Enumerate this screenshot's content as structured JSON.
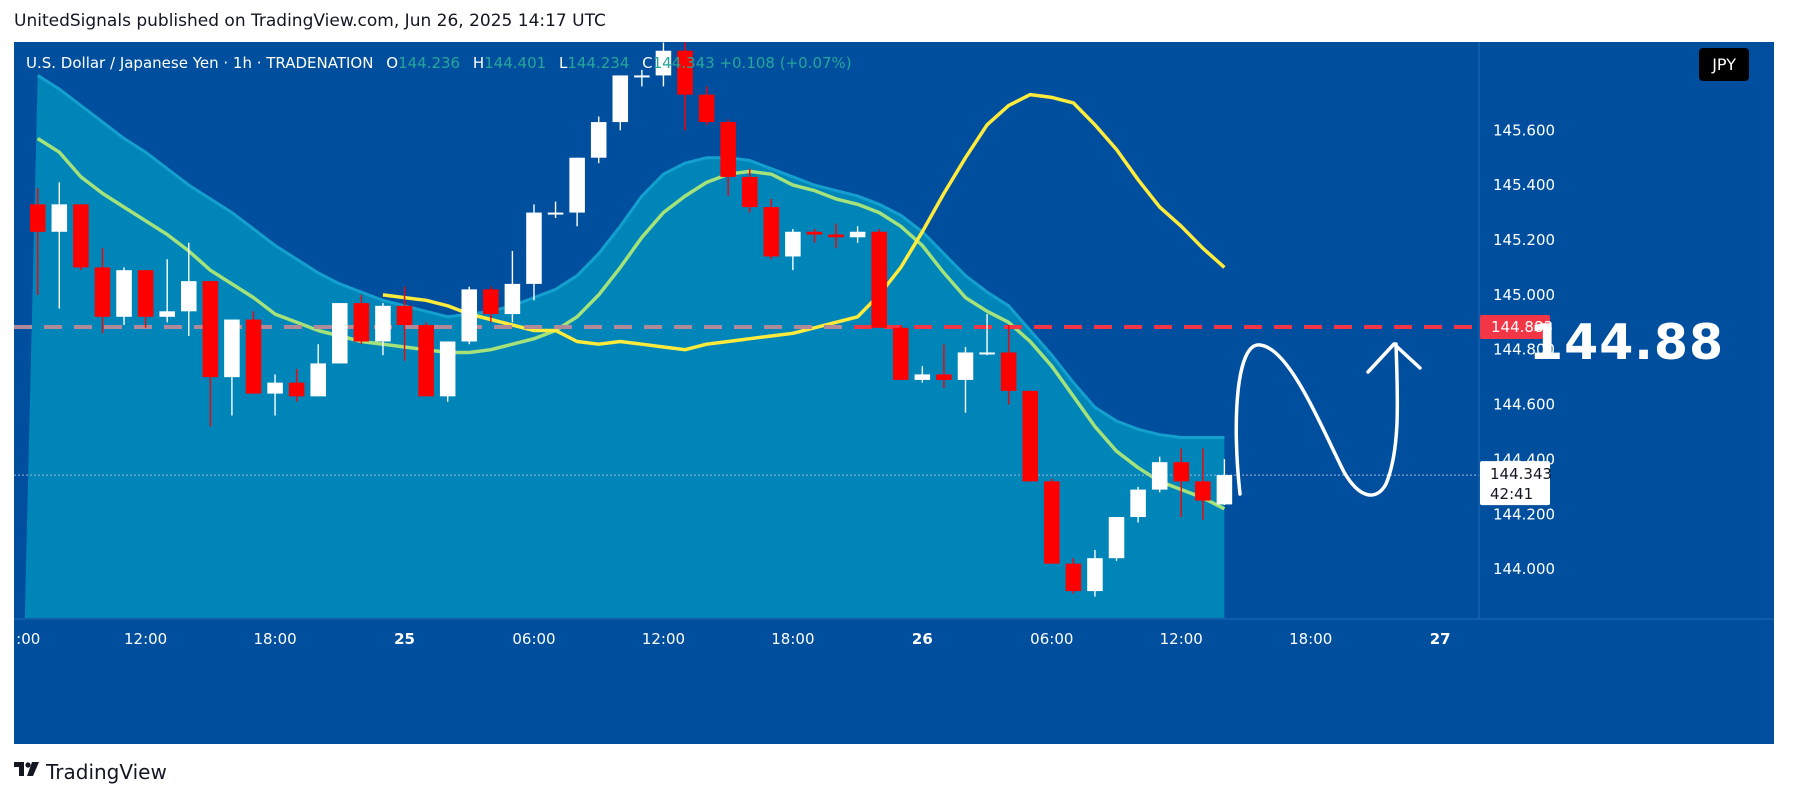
{
  "header": {
    "published": "UnitedSignals published on TradingView.com, Jun 26, 2025 14:17 UTC"
  },
  "legend": {
    "symbol": "U.S. Dollar / Japanese Yen · 1h · TRADENATION",
    "open_label": "O",
    "open": "144.236",
    "high_label": "H",
    "high": "144.401",
    "low_label": "L",
    "low": "144.234",
    "close_label": "C",
    "close": "144.343",
    "change": "+0.108 (+0.07%)"
  },
  "currency_badge": "JPY",
  "target": {
    "big_label": "144.88",
    "line_price": 144.883,
    "price_tag": "144.883"
  },
  "last_price": {
    "price": 144.343,
    "label": "144.343",
    "countdown": "42:41"
  },
  "footer": {
    "brand": "TradingView",
    "logo_icon": "tradingview-logo-icon"
  },
  "colors": {
    "background": "#004f9e",
    "bull": "#ffffff",
    "bear": "#ff0000",
    "band_fill": "#0088bb",
    "ema_fast": "#ffeb3b",
    "ema_slow": "#a5e27a",
    "target_line": "#f23645",
    "prior_level_line": "#b08a9a"
  },
  "chart_data": {
    "type": "candlestick",
    "title": "",
    "y_axis": {
      "ticks": [
        144.0,
        144.2,
        144.4,
        144.6,
        144.8,
        145.0,
        145.2,
        145.4,
        145.6
      ],
      "tick_labels": [
        "144.000",
        "144.200",
        "144.400",
        "144.600",
        "144.800",
        "145.000",
        "145.200",
        "145.400",
        "145.600"
      ],
      "range": [
        143.8,
        145.9
      ]
    },
    "x_axis": {
      "ticks": [
        {
          "label": ":00",
          "index": -1
        },
        {
          "label": "12:00",
          "index": 5
        },
        {
          "label": "18:00",
          "index": 11
        },
        {
          "label": "25",
          "index": 17
        },
        {
          "label": "06:00",
          "index": 23
        },
        {
          "label": "12:00",
          "index": 29
        },
        {
          "label": "18:00",
          "index": 35
        },
        {
          "label": "26",
          "index": 41
        },
        {
          "label": "06:00",
          "index": 47
        },
        {
          "label": "12:00",
          "index": 53
        },
        {
          "label": "18:00",
          "index": 59
        },
        {
          "label": "27",
          "index": 65
        }
      ],
      "range": [
        -1.1,
        66.8
      ]
    },
    "candles": [
      {
        "o": 145.33,
        "h": 145.39,
        "l": 145.0,
        "c": 145.23
      },
      {
        "o": 145.23,
        "h": 145.41,
        "l": 144.95,
        "c": 145.33
      },
      {
        "o": 145.33,
        "h": 145.33,
        "l": 145.09,
        "c": 145.1
      },
      {
        "o": 145.1,
        "h": 145.17,
        "l": 144.86,
        "c": 144.92
      },
      {
        "o": 144.92,
        "h": 145.1,
        "l": 144.89,
        "c": 145.09
      },
      {
        "o": 145.09,
        "h": 145.09,
        "l": 144.88,
        "c": 144.92
      },
      {
        "o": 144.92,
        "h": 145.13,
        "l": 144.9,
        "c": 144.94
      },
      {
        "o": 144.94,
        "h": 145.19,
        "l": 144.85,
        "c": 145.05
      },
      {
        "o": 145.05,
        "h": 145.05,
        "l": 144.52,
        "c": 144.7
      },
      {
        "o": 144.7,
        "h": 144.91,
        "l": 144.56,
        "c": 144.91
      },
      {
        "o": 144.91,
        "h": 144.94,
        "l": 144.64,
        "c": 144.64
      },
      {
        "o": 144.64,
        "h": 144.71,
        "l": 144.56,
        "c": 144.68
      },
      {
        "o": 144.68,
        "h": 144.73,
        "l": 144.61,
        "c": 144.63
      },
      {
        "o": 144.63,
        "h": 144.82,
        "l": 144.63,
        "c": 144.75
      },
      {
        "o": 144.75,
        "h": 144.97,
        "l": 144.75,
        "c": 144.97
      },
      {
        "o": 144.97,
        "h": 145.0,
        "l": 144.82,
        "c": 144.83
      },
      {
        "o": 144.83,
        "h": 144.97,
        "l": 144.78,
        "c": 144.96
      },
      {
        "o": 144.96,
        "h": 145.03,
        "l": 144.76,
        "c": 144.89
      },
      {
        "o": 144.89,
        "h": 144.9,
        "l": 144.63,
        "c": 144.63
      },
      {
        "o": 144.63,
        "h": 144.83,
        "l": 144.61,
        "c": 144.83
      },
      {
        "o": 144.83,
        "h": 145.03,
        "l": 144.82,
        "c": 145.02
      },
      {
        "o": 145.02,
        "h": 145.03,
        "l": 144.9,
        "c": 144.93
      },
      {
        "o": 144.93,
        "h": 145.16,
        "l": 144.9,
        "c": 145.04
      },
      {
        "o": 145.04,
        "h": 145.33,
        "l": 144.98,
        "c": 145.3
      },
      {
        "o": 145.3,
        "h": 145.34,
        "l": 145.28,
        "c": 145.3
      },
      {
        "o": 145.3,
        "h": 145.5,
        "l": 145.25,
        "c": 145.5
      },
      {
        "o": 145.5,
        "h": 145.65,
        "l": 145.48,
        "c": 145.63
      },
      {
        "o": 145.63,
        "h": 145.8,
        "l": 145.6,
        "c": 145.8
      },
      {
        "o": 145.8,
        "h": 145.82,
        "l": 145.76,
        "c": 145.8
      },
      {
        "o": 145.8,
        "h": 145.92,
        "l": 145.76,
        "c": 145.89
      },
      {
        "o": 145.89,
        "h": 145.95,
        "l": 145.6,
        "c": 145.73
      },
      {
        "o": 145.73,
        "h": 145.76,
        "l": 145.62,
        "c": 145.63
      },
      {
        "o": 145.63,
        "h": 145.64,
        "l": 145.36,
        "c": 145.43
      },
      {
        "o": 145.43,
        "h": 145.46,
        "l": 145.3,
        "c": 145.32
      },
      {
        "o": 145.32,
        "h": 145.35,
        "l": 145.13,
        "c": 145.14
      },
      {
        "o": 145.14,
        "h": 145.24,
        "l": 145.09,
        "c": 145.23
      },
      {
        "o": 145.23,
        "h": 145.24,
        "l": 145.19,
        "c": 145.22
      },
      {
        "o": 145.22,
        "h": 145.26,
        "l": 145.17,
        "c": 145.21
      },
      {
        "o": 145.21,
        "h": 145.25,
        "l": 145.19,
        "c": 145.23
      },
      {
        "o": 145.23,
        "h": 145.24,
        "l": 144.88,
        "c": 144.88
      },
      {
        "o": 144.88,
        "h": 144.89,
        "l": 144.69,
        "c": 144.69
      },
      {
        "o": 144.69,
        "h": 144.74,
        "l": 144.68,
        "c": 144.71
      },
      {
        "o": 144.71,
        "h": 144.82,
        "l": 144.66,
        "c": 144.69
      },
      {
        "o": 144.69,
        "h": 144.81,
        "l": 144.57,
        "c": 144.79
      },
      {
        "o": 144.79,
        "h": 144.93,
        "l": 144.78,
        "c": 144.79
      },
      {
        "o": 144.79,
        "h": 144.89,
        "l": 144.6,
        "c": 144.65
      },
      {
        "o": 144.65,
        "h": 144.65,
        "l": 144.32,
        "c": 144.32
      },
      {
        "o": 144.32,
        "h": 144.33,
        "l": 144.02,
        "c": 144.02
      },
      {
        "o": 144.02,
        "h": 144.04,
        "l": 143.91,
        "c": 143.92
      },
      {
        "o": 143.92,
        "h": 144.07,
        "l": 143.9,
        "c": 144.04
      },
      {
        "o": 144.04,
        "h": 144.19,
        "l": 144.03,
        "c": 144.19
      },
      {
        "o": 144.19,
        "h": 144.3,
        "l": 144.17,
        "c": 144.29
      },
      {
        "o": 144.29,
        "h": 144.41,
        "l": 144.28,
        "c": 144.39
      },
      {
        "o": 144.39,
        "h": 144.44,
        "l": 144.19,
        "c": 144.32
      },
      {
        "o": 144.32,
        "h": 144.44,
        "l": 144.18,
        "c": 144.25
      },
      {
        "o": 144.236,
        "h": 144.401,
        "l": 144.234,
        "c": 144.343
      }
    ],
    "ema_fast": [
      145.0,
      144.99,
      144.98,
      144.96,
      144.93,
      144.91,
      144.89,
      144.87,
      144.87,
      144.83,
      144.82,
      144.83,
      144.82,
      144.81,
      144.8,
      144.82,
      144.83,
      144.84,
      144.85,
      144.86,
      144.88,
      144.9,
      144.92,
      145.0,
      145.1,
      145.23,
      145.37,
      145.5,
      145.62,
      145.69,
      145.73,
      145.72,
      145.7,
      145.62,
      145.53,
      145.42,
      145.32,
      145.25,
      145.17,
      145.1
    ],
    "ema_slow": [
      145.57,
      145.52,
      145.43,
      145.37,
      145.32,
      145.27,
      145.22,
      145.16,
      145.09,
      145.04,
      144.99,
      144.93,
      144.9,
      144.87,
      144.85,
      144.83,
      144.82,
      144.81,
      144.8,
      144.79,
      144.79,
      144.8,
      144.82,
      144.84,
      144.87,
      144.92,
      145.0,
      145.1,
      145.21,
      145.3,
      145.36,
      145.41,
      145.44,
      145.45,
      145.44,
      145.4,
      145.38,
      145.35,
      145.33,
      145.3,
      145.25,
      145.18,
      145.08,
      144.99,
      144.94,
      144.9,
      144.83,
      144.74,
      144.63,
      144.52,
      144.43,
      144.37,
      144.32,
      144.29,
      144.26,
      144.22
    ],
    "band_upper": [
      145.8,
      145.75,
      145.69,
      145.63,
      145.57,
      145.52,
      145.46,
      145.4,
      145.35,
      145.3,
      145.24,
      145.18,
      145.13,
      145.08,
      145.04,
      145.01,
      144.98,
      144.96,
      144.94,
      144.92,
      144.93,
      144.94,
      144.96,
      144.99,
      145.02,
      145.07,
      145.15,
      145.25,
      145.36,
      145.44,
      145.48,
      145.5,
      145.5,
      145.49,
      145.46,
      145.43,
      145.4,
      145.38,
      145.36,
      145.33,
      145.29,
      145.23,
      145.15,
      145.07,
      145.01,
      144.96,
      144.87,
      144.78,
      144.68,
      144.59,
      144.54,
      144.51,
      144.49,
      144.48,
      144.48,
      144.48
    ]
  }
}
